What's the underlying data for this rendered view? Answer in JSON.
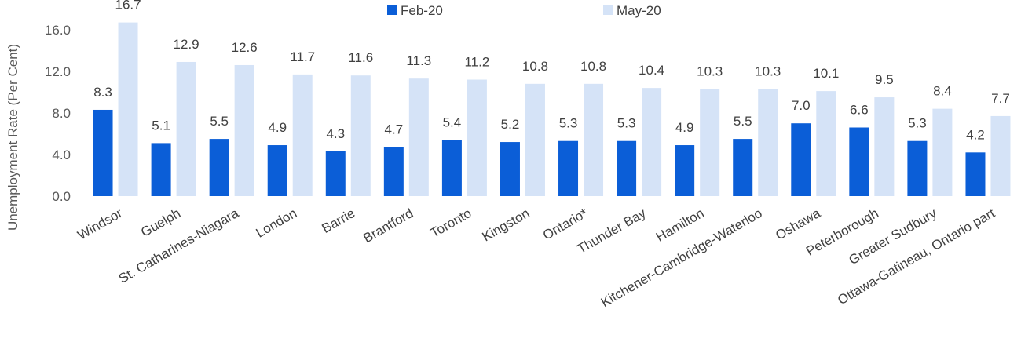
{
  "chart_data": {
    "type": "bar",
    "ylabel": "Unemployment Rate (Per Cent)",
    "xlabel": "",
    "ylim": [
      0,
      17.5
    ],
    "yticks": [
      "0.0",
      "4.0",
      "8.0",
      "12.0",
      "16.0"
    ],
    "ytick_values": [
      0,
      4,
      8,
      12,
      16
    ],
    "grid": false,
    "legend_position": "top-center",
    "categories": [
      "Windsor",
      "Guelph",
      "St. Catharines-Niagara",
      "London",
      "Barrie",
      "Brantford",
      "Toronto",
      "Kingston",
      "Ontario*",
      "Thunder Bay",
      "Hamilton",
      "Kitchener-Cambridge-Waterloo",
      "Oshawa",
      "Peterborough",
      "Greater Sudbury",
      "Ottawa-Gatineau, Ontario part"
    ],
    "series": [
      {
        "name": "Feb-20",
        "color": "#0b5ed7",
        "values": [
          8.3,
          5.1,
          5.5,
          4.9,
          4.3,
          4.7,
          5.4,
          5.2,
          5.3,
          5.3,
          4.9,
          5.5,
          7.0,
          6.6,
          5.3,
          4.2
        ],
        "labels": [
          "8.3",
          "5.1",
          "5.5",
          "4.9",
          "4.3",
          "4.7",
          "5.4",
          "5.2",
          "5.3",
          "5.3",
          "4.9",
          "5.5",
          "7.0",
          "6.6",
          "5.3",
          "4.2"
        ]
      },
      {
        "name": "May-20",
        "color": "#d5e3f7",
        "values": [
          16.7,
          12.9,
          12.6,
          11.7,
          11.6,
          11.3,
          11.2,
          10.8,
          10.8,
          10.4,
          10.3,
          10.3,
          10.1,
          9.5,
          8.4,
          7.7
        ],
        "labels": [
          "16.7",
          "12.9",
          "12.6",
          "11.7",
          "11.6",
          "11.3",
          "11.2",
          "10.8",
          "10.8",
          "10.4",
          "10.3",
          "10.3",
          "10.1",
          "9.5",
          "8.4",
          "7.7"
        ]
      }
    ]
  }
}
